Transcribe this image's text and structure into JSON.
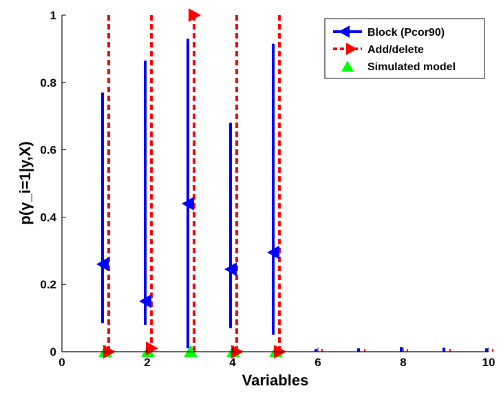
{
  "chart_data": {
    "type": "scatter",
    "title": "",
    "xlabel": "Variables",
    "ylabel": "p(γ_i=1|y,X)",
    "xlim": [
      0,
      10
    ],
    "ylim": [
      0,
      1
    ],
    "xticks": [
      "0",
      "2",
      "4",
      "6",
      "8",
      "10"
    ],
    "yticks": [
      "0",
      "0.2",
      "0.4",
      "0.6",
      "0.8",
      "1"
    ],
    "grid": false,
    "legend_position": "top-right",
    "series": [
      {
        "name": "Block (Pcor90)",
        "marker": "left-triangle",
        "line_style": "solid",
        "color": "#0000ff",
        "x": [
          1,
          2,
          3,
          4,
          5,
          6,
          7,
          8,
          9,
          10
        ],
        "values": [
          0.26,
          0.15,
          0.44,
          0.245,
          0.295,
          0.006,
          0.008,
          0.012,
          0.01,
          0.008
        ],
        "lower": [
          0.085,
          0.08,
          0.01,
          0.07,
          0.05,
          0.0,
          0.0,
          0.0,
          0.0,
          0.0
        ],
        "upper": [
          0.77,
          0.865,
          0.93,
          0.68,
          0.915,
          0.008,
          0.01,
          0.014,
          0.012,
          0.01
        ]
      },
      {
        "name": "Add/delete",
        "marker": "right-triangle",
        "line_style": "dashed",
        "color": "#ff0000",
        "x": [
          1,
          2,
          3,
          4,
          5,
          6,
          7,
          8,
          9,
          10
        ],
        "values": [
          0.0,
          0.01,
          1.0,
          0.0,
          0.0,
          0.002,
          0.002,
          0.002,
          0.002,
          0.002
        ],
        "lower": [
          0,
          0,
          0,
          0,
          0,
          0,
          0,
          0,
          0,
          0
        ],
        "upper": [
          1,
          1,
          1,
          1,
          1,
          0.004,
          0.004,
          0.004,
          0.004,
          0.004
        ]
      },
      {
        "name": "Simulated model",
        "marker": "up-triangle",
        "line_style": "none",
        "color": "#00ff00",
        "x": [
          1,
          2,
          3,
          4,
          5
        ],
        "values": [
          0,
          0,
          0,
          0,
          0
        ]
      }
    ]
  }
}
